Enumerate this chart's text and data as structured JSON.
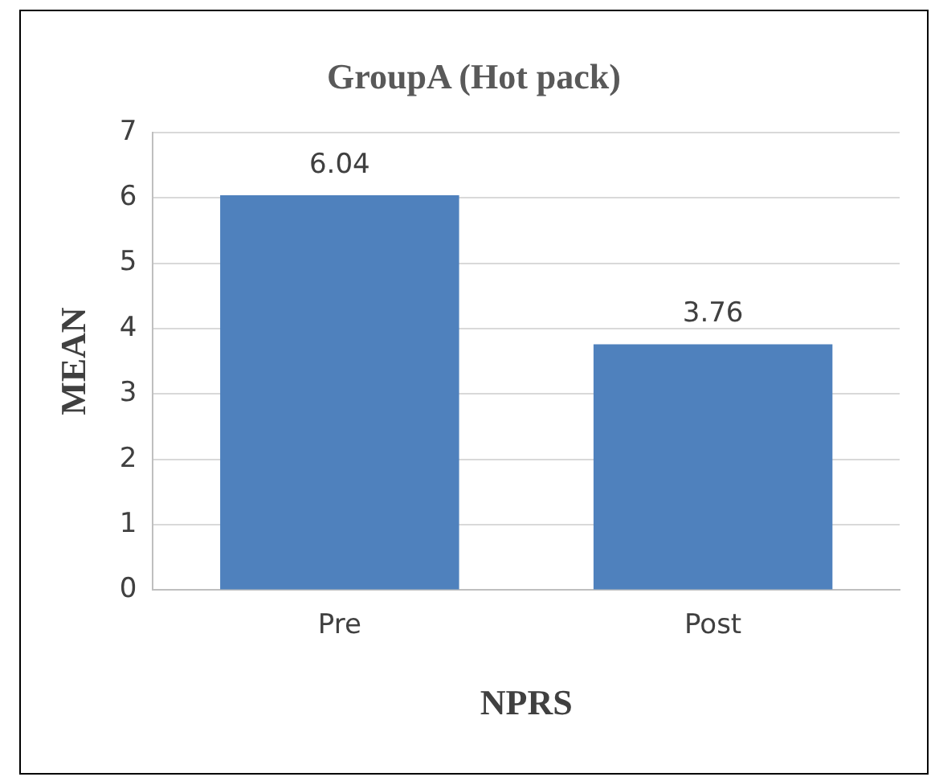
{
  "chart_data": {
    "type": "bar",
    "title": "GroupA (Hot pack)",
    "xlabel": "NPRS",
    "ylabel": "MEAN",
    "categories": [
      "Pre",
      "Post"
    ],
    "values": [
      6.04,
      3.76
    ],
    "color": "#4f81bd",
    "ylim": [
      0,
      7
    ],
    "yticks": [
      0,
      1,
      2,
      3,
      4,
      5,
      6,
      7
    ],
    "grid": "y",
    "data_labels": true,
    "legend": false
  }
}
